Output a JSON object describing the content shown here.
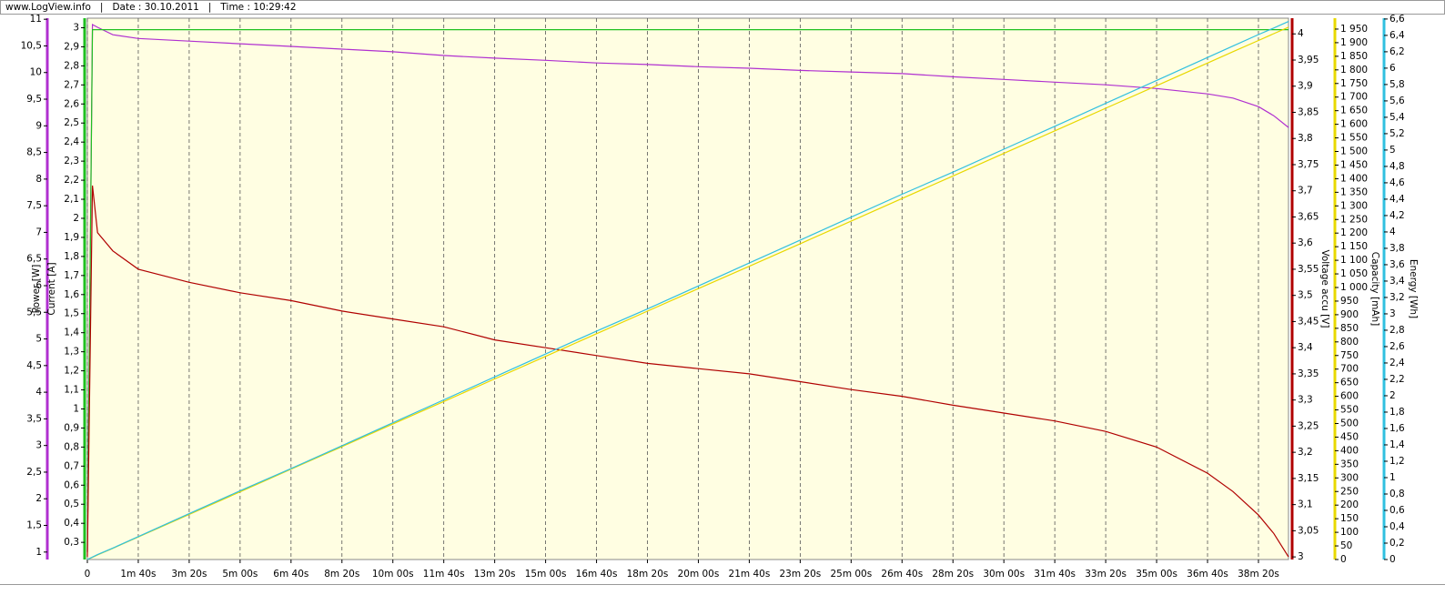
{
  "chart_data": {
    "type": "line",
    "title": "www.LogView.info   |   Date : 30.10.2011   |   Time : 10:29:42",
    "x": [
      0,
      10,
      20,
      50,
      100,
      200,
      300,
      400,
      500,
      600,
      700,
      800,
      900,
      1000,
      1100,
      1200,
      1300,
      1400,
      1500,
      1600,
      1700,
      1800,
      1900,
      2000,
      2100,
      2200,
      2250,
      2300,
      2330,
      2359
    ],
    "xlim": [
      0,
      2359
    ],
    "xticks": [
      0,
      {
        "value": 100,
        "label": "1m 40s"
      },
      {
        "value": 200,
        "label": "3m 20s"
      },
      {
        "value": 300,
        "label": "5m 00s"
      },
      {
        "value": 400,
        "label": "6m 40s"
      },
      {
        "value": 500,
        "label": "8m 20s"
      },
      {
        "value": 600,
        "label": "10m 00s"
      },
      {
        "value": 700,
        "label": "11m 40s"
      },
      {
        "value": 800,
        "label": "13m 20s"
      },
      {
        "value": 900,
        "label": "15m 00s"
      },
      {
        "value": 1000,
        "label": "16m 40s"
      },
      {
        "value": 1100,
        "label": "18m 20s"
      },
      {
        "value": 1200,
        "label": "20m 00s"
      },
      {
        "value": 1300,
        "label": "21m 40s"
      },
      {
        "value": 1400,
        "label": "23m 20s"
      },
      {
        "value": 1500,
        "label": "25m 00s"
      },
      {
        "value": 1600,
        "label": "26m 40s"
      },
      {
        "value": 1700,
        "label": "28m 20s"
      },
      {
        "value": 1800,
        "label": "30m 00s"
      },
      {
        "value": 1900,
        "label": "31m 40s"
      },
      {
        "value": 2000,
        "label": "33m 20s"
      },
      {
        "value": 2100,
        "label": "35m 00s"
      },
      {
        "value": 2200,
        "label": "36m 40s"
      },
      {
        "value": 2300,
        "label": "38m 20s"
      }
    ],
    "grid": true,
    "series": [
      {
        "name": "Power [W]",
        "color": "#b030d0",
        "side": "left",
        "values": [
          1.0,
          10.9,
          10.85,
          10.71,
          10.64,
          10.59,
          10.54,
          10.49,
          10.44,
          10.39,
          10.32,
          10.27,
          10.23,
          10.18,
          10.15,
          10.11,
          10.08,
          10.04,
          10.01,
          9.98,
          9.92,
          9.87,
          9.82,
          9.77,
          9.7,
          9.6,
          9.52,
          9.36,
          9.19,
          8.97
        ],
        "ylim": [
          0.86,
          11.02
        ],
        "yticks": [
          1,
          {
            "value": 1.5,
            "label": "1,5"
          },
          2,
          {
            "value": 2.5,
            "label": "2,5"
          },
          3,
          {
            "value": 3.5,
            "label": "3,5"
          },
          4,
          {
            "value": 4.5,
            "label": "4,5"
          },
          5,
          {
            "value": 5.5,
            "label": "5,5"
          },
          6,
          {
            "value": 6.5,
            "label": "6,5"
          },
          7,
          {
            "value": 7.5,
            "label": "7,5"
          },
          8,
          {
            "value": 8.5,
            "label": "8,5"
          },
          9,
          {
            "value": 9.5,
            "label": "9,5"
          },
          10,
          {
            "value": 10.5,
            "label": "10,5"
          },
          11
        ]
      },
      {
        "name": "Current [A]",
        "color": "#20c020",
        "side": "left",
        "values": [
          0.25,
          2.99,
          2.99,
          2.99,
          2.99,
          2.99,
          2.99,
          2.99,
          2.99,
          2.99,
          2.99,
          2.99,
          2.99,
          2.99,
          2.99,
          2.99,
          2.99,
          2.99,
          2.99,
          2.99,
          2.99,
          2.99,
          2.99,
          2.99,
          2.99,
          2.99,
          2.99,
          2.99,
          2.99,
          2.99
        ],
        "ylim": [
          0.21,
          3.05
        ],
        "yticks": [
          {
            "value": 0.3,
            "label": "0,3"
          },
          {
            "value": 0.4,
            "label": "0,4"
          },
          {
            "value": 0.5,
            "label": "0,5"
          },
          {
            "value": 0.6,
            "label": "0,6"
          },
          {
            "value": 0.7,
            "label": "0,7"
          },
          {
            "value": 0.8,
            "label": "0,8"
          },
          {
            "value": 0.9,
            "label": "0,9"
          },
          1,
          {
            "value": 1.1,
            "label": "1,1"
          },
          {
            "value": 1.2,
            "label": "1,2"
          },
          {
            "value": 1.3,
            "label": "1,3"
          },
          {
            "value": 1.4,
            "label": "1,4"
          },
          {
            "value": 1.5,
            "label": "1,5"
          },
          {
            "value": 1.6,
            "label": "1,6"
          },
          {
            "value": 1.7,
            "label": "1,7"
          },
          {
            "value": 1.8,
            "label": "1,8"
          },
          {
            "value": 1.9,
            "label": "1,9"
          },
          2,
          {
            "value": 2.1,
            "label": "2,1"
          },
          {
            "value": 2.2,
            "label": "2,2"
          },
          {
            "value": 2.3,
            "label": "2,3"
          },
          {
            "value": 2.4,
            "label": "2,4"
          },
          {
            "value": 2.5,
            "label": "2,5"
          },
          {
            "value": 2.6,
            "label": "2,6"
          },
          {
            "value": 2.7,
            "label": "2,7"
          },
          {
            "value": 2.8,
            "label": "2,8"
          },
          {
            "value": 2.9,
            "label": "2,9"
          },
          3
        ]
      },
      {
        "name": "Voltage accu [V]",
        "color": "#b00000",
        "side": "right",
        "values": [
          3.0,
          3.71,
          3.62,
          3.585,
          3.55,
          3.525,
          3.505,
          3.49,
          3.47,
          3.455,
          3.44,
          3.415,
          3.4,
          3.385,
          3.37,
          3.36,
          3.35,
          3.335,
          3.32,
          3.307,
          3.29,
          3.275,
          3.26,
          3.24,
          3.21,
          3.16,
          3.125,
          3.08,
          3.045,
          3.0
        ],
        "ylim": [
          2.995,
          4.03
        ],
        "yticks": [
          3,
          {
            "value": 3.05,
            "label": "3,05"
          },
          {
            "value": 3.1,
            "label": "3,1"
          },
          {
            "value": 3.15,
            "label": "3,15"
          },
          {
            "value": 3.2,
            "label": "3,2"
          },
          {
            "value": 3.25,
            "label": "3,25"
          },
          {
            "value": 3.3,
            "label": "3,3"
          },
          {
            "value": 3.35,
            "label": "3,35"
          },
          {
            "value": 3.4,
            "label": "3,4"
          },
          {
            "value": 3.45,
            "label": "3,45"
          },
          {
            "value": 3.5,
            "label": "3,5"
          },
          {
            "value": 3.55,
            "label": "3,55"
          },
          {
            "value": 3.6,
            "label": "3,6"
          },
          {
            "value": 3.65,
            "label": "3,65"
          },
          {
            "value": 3.7,
            "label": "3,7"
          },
          {
            "value": 3.75,
            "label": "3,75"
          },
          {
            "value": 3.8,
            "label": "3,8"
          },
          {
            "value": 3.85,
            "label": "3,85"
          },
          {
            "value": 3.9,
            "label": "3,9"
          },
          {
            "value": 3.95,
            "label": "3,95"
          },
          4
        ]
      },
      {
        "name": "Capacity [mAh]",
        "color": "#e8d800",
        "side": "right",
        "values": [
          0,
          8,
          17,
          41,
          83,
          166,
          249,
          332,
          415,
          498,
          581,
          664,
          747,
          830,
          913,
          996,
          1078,
          1161,
          1244,
          1327,
          1410,
          1493,
          1576,
          1659,
          1742,
          1825,
          1867,
          1908,
          1933,
          1957
        ],
        "ylim": [
          0,
          1990
        ],
        "yticks": [
          0,
          50,
          100,
          150,
          200,
          250,
          300,
          350,
          400,
          450,
          500,
          550,
          600,
          650,
          700,
          750,
          800,
          850,
          900,
          950,
          {
            "value": 1000,
            "label": "1 000"
          },
          {
            "value": 1050,
            "label": "1 050"
          },
          {
            "value": 1100,
            "label": "1 100"
          },
          {
            "value": 1150,
            "label": "1 150"
          },
          {
            "value": 1200,
            "label": "1 200"
          },
          {
            "value": 1250,
            "label": "1 250"
          },
          {
            "value": 1300,
            "label": "1 300"
          },
          {
            "value": 1350,
            "label": "1 350"
          },
          {
            "value": 1400,
            "label": "1 400"
          },
          {
            "value": 1450,
            "label": "1 450"
          },
          {
            "value": 1500,
            "label": "1 500"
          },
          {
            "value": 1550,
            "label": "1 550"
          },
          {
            "value": 1600,
            "label": "1 600"
          },
          {
            "value": 1650,
            "label": "1 650"
          },
          {
            "value": 1700,
            "label": "1 700"
          },
          {
            "value": 1750,
            "label": "1 750"
          },
          {
            "value": 1800,
            "label": "1 800"
          },
          {
            "value": 1850,
            "label": "1 850"
          },
          {
            "value": 1900,
            "label": "1 900"
          },
          {
            "value": 1950,
            "label": "1 950"
          }
        ]
      },
      {
        "name": "Energy [Wh]",
        "color": "#30c0e0",
        "side": "right",
        "values": [
          0,
          0.03,
          0.06,
          0.14,
          0.28,
          0.56,
          0.84,
          1.11,
          1.39,
          1.67,
          1.95,
          2.23,
          2.51,
          2.79,
          3.06,
          3.34,
          3.62,
          3.9,
          4.18,
          4.46,
          4.73,
          5.01,
          5.29,
          5.57,
          5.85,
          6.13,
          6.27,
          6.41,
          6.49,
          6.57
        ],
        "ylim": [
          0,
          6.61
        ],
        "yticks": [
          0,
          {
            "value": 0.2,
            "label": "0,2"
          },
          {
            "value": 0.4,
            "label": "0,4"
          },
          {
            "value": 0.6,
            "label": "0,6"
          },
          {
            "value": 0.8,
            "label": "0,8"
          },
          1,
          {
            "value": 1.2,
            "label": "1,2"
          },
          {
            "value": 1.4,
            "label": "1,4"
          },
          {
            "value": 1.6,
            "label": "1,6"
          },
          {
            "value": 1.8,
            "label": "1,8"
          },
          2,
          {
            "value": 2.2,
            "label": "2,2"
          },
          {
            "value": 2.4,
            "label": "2,4"
          },
          {
            "value": 2.6,
            "label": "2,6"
          },
          {
            "value": 2.8,
            "label": "2,8"
          },
          3,
          {
            "value": 3.2,
            "label": "3,2"
          },
          {
            "value": 3.4,
            "label": "3,4"
          },
          {
            "value": 3.6,
            "label": "3,6"
          },
          {
            "value": 3.8,
            "label": "3,8"
          },
          4,
          {
            "value": 4.2,
            "label": "4,2"
          },
          {
            "value": 4.4,
            "label": "4,4"
          },
          {
            "value": 4.6,
            "label": "4,6"
          },
          {
            "value": 4.8,
            "label": "4,8"
          },
          5,
          {
            "value": 5.2,
            "label": "5,2"
          },
          {
            "value": 5.4,
            "label": "5,4"
          },
          {
            "value": 5.6,
            "label": "5,6"
          },
          {
            "value": 5.8,
            "label": "5,8"
          },
          6,
          {
            "value": 6.2,
            "label": "6,2"
          },
          {
            "value": 6.4,
            "label": "6,4"
          },
          {
            "value": 6.6,
            "label": "6,6"
          }
        ]
      }
    ]
  }
}
